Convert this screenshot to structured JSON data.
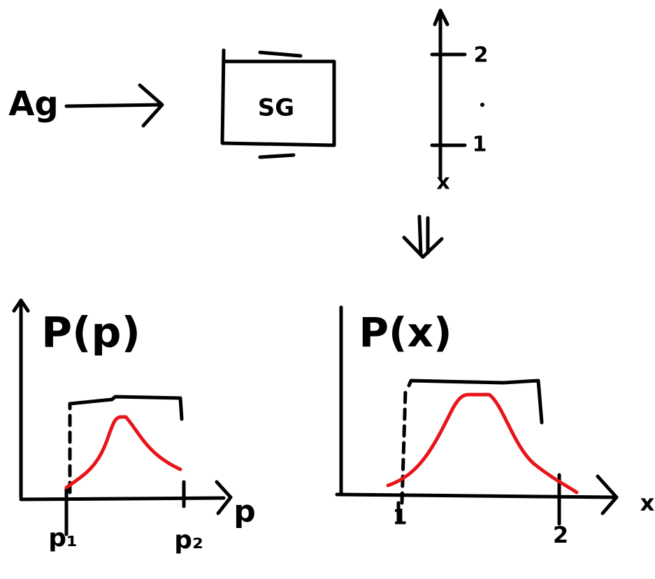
{
  "source": {
    "label": "Ag"
  },
  "device": {
    "label": "SG"
  },
  "screen_axis": {
    "ticks": [
      "2",
      "1"
    ],
    "label": "x"
  },
  "plots": [
    {
      "title": "P(p)",
      "x_label": "p",
      "ticks": [
        "p₁",
        "p₂"
      ]
    },
    {
      "title": "P(x)",
      "x_label": "x",
      "ticks": [
        "1",
        "2"
      ]
    }
  ]
}
